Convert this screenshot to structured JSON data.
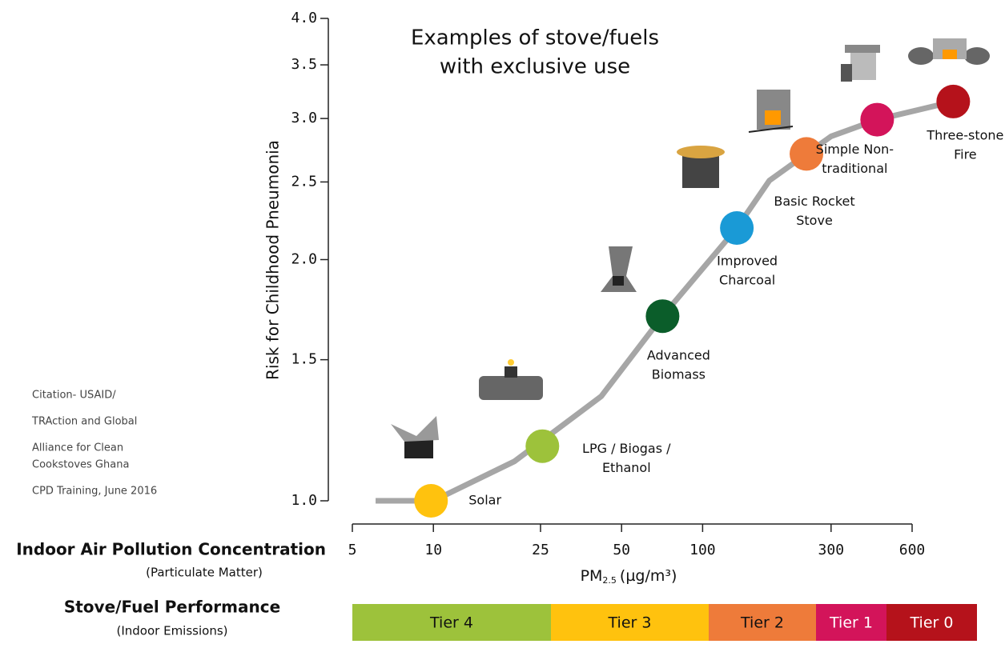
{
  "chart_data": {
    "type": "line",
    "title": [
      "Examples of stove/fuels",
      "with exclusive use"
    ],
    "y_label": "Risk for Childhood Pneumonia",
    "x_title": "Indoor Air Pollution Concentration",
    "x_subtitle": "(Particulate Matter)",
    "x_label": {
      "main": "PM",
      "sub": "2.5",
      "unit": "(µg/m³)"
    },
    "citation": [
      "Citation- USAID/",
      "TRAction and Global",
      "Alliance for Clean",
      "Cookstoves Ghana",
      "CPD Training, June 2016"
    ],
    "x_log": true,
    "y_log": true,
    "xlim": [
      5,
      600
    ],
    "xticks": [
      5,
      10,
      25,
      50,
      100,
      300,
      600
    ],
    "ylim": [
      1,
      4
    ],
    "yticks": [
      {
        "value": 1,
        "label": "1.0"
      },
      1.5,
      {
        "value": 2,
        "label": "2.0"
      },
      2.5,
      {
        "value": 3,
        "label": "3.0"
      },
      3.5,
      {
        "value": 4,
        "label": "4.0"
      }
    ],
    "curve": {
      "color": "#a6a6a6",
      "x": [
        6.1,
        10,
        20,
        42,
        71,
        134,
        177,
        300,
        445,
        853
      ],
      "y": [
        1.0,
        1.0,
        1.12,
        1.35,
        1.7,
        2.19,
        2.51,
        2.85,
        2.99,
        3.15
      ]
    },
    "points": {
      "x": [
        9.8,
        25.4,
        71,
        134,
        243,
        445,
        853
      ],
      "y": [
        1.0,
        1.17,
        1.7,
        2.19,
        2.71,
        2.99,
        3.15
      ],
      "colors": [
        "#ffc20e",
        "#9dc23b",
        "#0b5d2a",
        "#1a9ad6",
        "#ee7b3a",
        "#d3145a",
        "#b5121b"
      ],
      "labels": [
        [
          "Solar"
        ],
        [
          "LPG / Biogas /",
          "Ethanol"
        ],
        [
          "Advanced",
          "Biomass"
        ],
        [
          "Improved",
          "Charcoal"
        ],
        [
          "Basic Rocket",
          "Stove"
        ],
        [
          "Simple Non-",
          "traditional"
        ],
        [
          "Three-stone",
          "Fire"
        ]
      ]
    },
    "tier_title": "Stove/Fuel Performance",
    "tier_subtitle": "(Indoor Emissions)",
    "tiers": {
      "categories": [
        "Tier 4",
        "Tier 3",
        "Tier 2",
        "Tier 1",
        "Tier 0"
      ],
      "colors": [
        "#9dc23b",
        "#ffc20e",
        "#ee7b3a",
        "#d3145a",
        "#b5121b"
      ]
    }
  }
}
